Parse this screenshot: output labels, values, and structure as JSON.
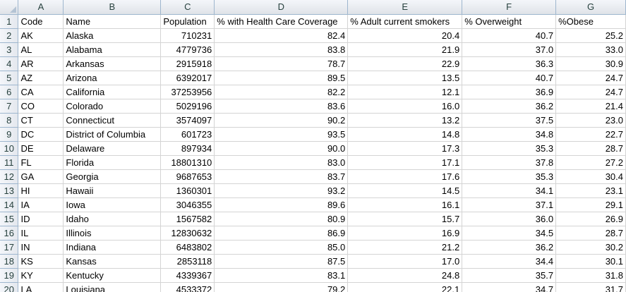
{
  "columns": [
    "A",
    "B",
    "C",
    "D",
    "E",
    "F",
    "G"
  ],
  "rows": [
    {
      "n": "1",
      "cells": [
        "Code",
        "Name",
        "Population",
        "% with Health Care Coverage",
        "% Adult current smokers",
        "% Overweight",
        "%Obese"
      ]
    },
    {
      "n": "2",
      "cells": [
        "AK",
        "Alaska",
        "710231",
        "82.4",
        "20.4",
        "40.7",
        "25.2"
      ]
    },
    {
      "n": "3",
      "cells": [
        "AL",
        "Alabama",
        "4779736",
        "83.8",
        "21.9",
        "37.0",
        "33.0"
      ]
    },
    {
      "n": "4",
      "cells": [
        "AR",
        "Arkansas",
        "2915918",
        "78.7",
        "22.9",
        "36.3",
        "30.9"
      ]
    },
    {
      "n": "5",
      "cells": [
        "AZ",
        "Arizona",
        "6392017",
        "89.5",
        "13.5",
        "40.7",
        "24.7"
      ]
    },
    {
      "n": "6",
      "cells": [
        "CA",
        "California",
        "37253956",
        "82.2",
        "12.1",
        "36.9",
        "24.7"
      ]
    },
    {
      "n": "7",
      "cells": [
        "CO",
        "Colorado",
        "5029196",
        "83.6",
        "16.0",
        "36.2",
        "21.4"
      ]
    },
    {
      "n": "8",
      "cells": [
        "CT",
        "Connecticut",
        "3574097",
        "90.2",
        "13.2",
        "37.5",
        "23.0"
      ]
    },
    {
      "n": "9",
      "cells": [
        "DC",
        "District of Columbia",
        "601723",
        "93.5",
        "14.8",
        "34.8",
        "22.7"
      ]
    },
    {
      "n": "10",
      "cells": [
        "DE",
        "Delaware",
        "897934",
        "90.0",
        "17.3",
        "35.3",
        "28.7"
      ]
    },
    {
      "n": "11",
      "cells": [
        "FL",
        "Florida",
        "18801310",
        "83.0",
        "17.1",
        "37.8",
        "27.2"
      ]
    },
    {
      "n": "12",
      "cells": [
        "GA",
        "Georgia",
        "9687653",
        "83.7",
        "17.6",
        "35.3",
        "30.4"
      ]
    },
    {
      "n": "13",
      "cells": [
        "HI",
        "Hawaii",
        "1360301",
        "93.2",
        "14.5",
        "34.1",
        "23.1"
      ]
    },
    {
      "n": "14",
      "cells": [
        "IA",
        "Iowa",
        "3046355",
        "89.6",
        "16.1",
        "37.1",
        "29.1"
      ]
    },
    {
      "n": "15",
      "cells": [
        "ID",
        "Idaho",
        "1567582",
        "80.9",
        "15.7",
        "36.0",
        "26.9"
      ]
    },
    {
      "n": "16",
      "cells": [
        "IL",
        "Illinois",
        "12830632",
        "86.9",
        "16.9",
        "34.5",
        "28.7"
      ]
    },
    {
      "n": "17",
      "cells": [
        "IN",
        "Indiana",
        "6483802",
        "85.0",
        "21.2",
        "36.2",
        "30.2"
      ]
    },
    {
      "n": "18",
      "cells": [
        "KS",
        "Kansas",
        "2853118",
        "87.5",
        "17.0",
        "34.4",
        "30.1"
      ]
    },
    {
      "n": "19",
      "cells": [
        "KY",
        "Kentucky",
        "4339367",
        "83.1",
        "24.8",
        "35.7",
        "31.8"
      ]
    },
    {
      "n": "20",
      "cells": [
        "LA",
        "Louisiana",
        "4533372",
        "79.2",
        "22.1",
        "34.7",
        "31.7"
      ]
    }
  ]
}
